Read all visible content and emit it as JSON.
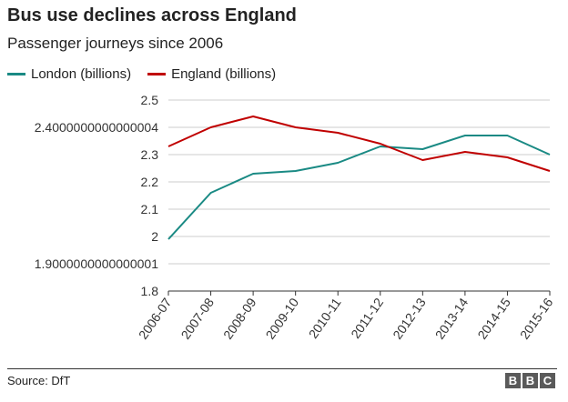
{
  "header": {
    "title": "Bus use declines across England",
    "subtitle": "Passenger journeys since 2006"
  },
  "footer": {
    "source": "Source: DfT",
    "logo_letters": [
      "B",
      "B",
      "C"
    ]
  },
  "colors": {
    "london": "#1a8a84",
    "england": "#c00000",
    "grid": "#cccccc",
    "axis": "#333333"
  },
  "chart_data": {
    "type": "line",
    "title": "Bus use declines across England",
    "subtitle": "Passenger journeys since 2006",
    "xlabel": "",
    "ylabel": "",
    "ylim": [
      1.8,
      2.5
    ],
    "yticks": [
      "2.5",
      "2.4000000000000004",
      "2.3",
      "2.2",
      "2.1",
      "2",
      "1.9000000000000001",
      "1.8"
    ],
    "ytick_values": [
      2.5,
      2.4,
      2.3,
      2.2,
      2.1,
      2.0,
      1.9,
      1.8
    ],
    "categories": [
      "2006-07",
      "2007-08",
      "2008-09",
      "2009-10",
      "2010-11",
      "2011-12",
      "2012-13",
      "2013-14",
      "2014-15",
      "2015-16"
    ],
    "legend_position": "top-left",
    "grid": true,
    "series": [
      {
        "name": "London (billions)",
        "color": "#1a8a84",
        "values": [
          1.99,
          2.16,
          2.23,
          2.24,
          2.27,
          2.33,
          2.32,
          2.37,
          2.37,
          2.3
        ]
      },
      {
        "name": "England (billions)",
        "color": "#c00000",
        "values": [
          2.33,
          2.4,
          2.44,
          2.4,
          2.38,
          2.34,
          2.28,
          2.31,
          2.29,
          2.24
        ]
      }
    ]
  }
}
